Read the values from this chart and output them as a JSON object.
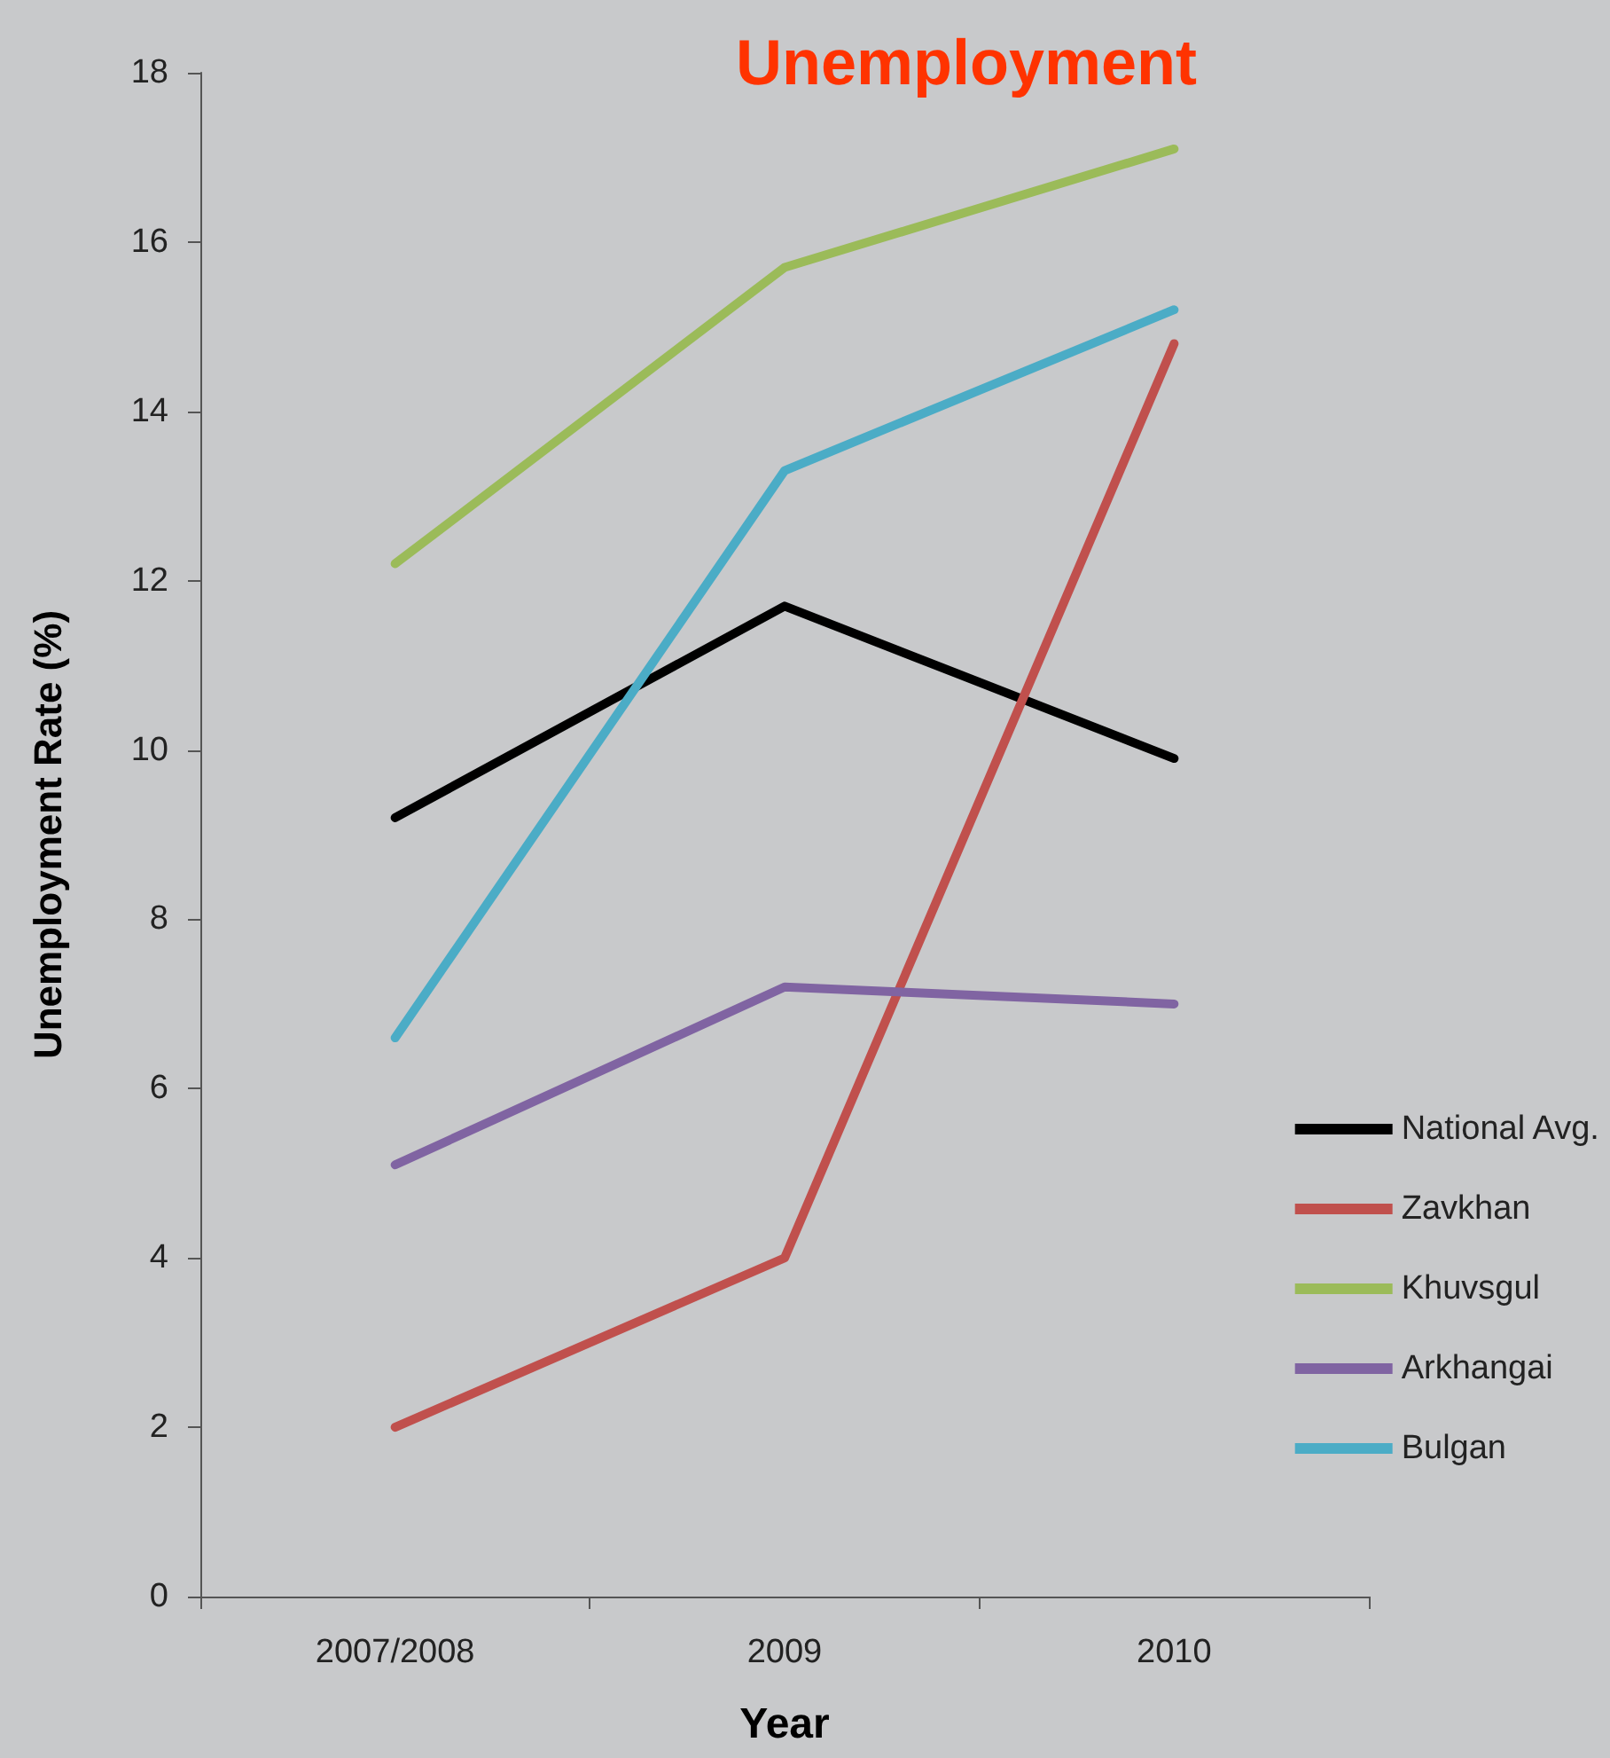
{
  "chart_data": {
    "type": "line",
    "title": "Unemployment",
    "xlabel": "Year",
    "ylabel": "Unemployment Rate (%)",
    "categories": [
      "2007/2008",
      "2009",
      "2010"
    ],
    "series": [
      {
        "name": "National Avg.",
        "color": "#000000",
        "values": [
          9.2,
          11.7,
          9.9
        ]
      },
      {
        "name": "Zavkhan",
        "color": "#c0504d",
        "values": [
          2.0,
          4.0,
          14.8
        ]
      },
      {
        "name": "Khuvsgul",
        "color": "#9bbb59",
        "values": [
          12.2,
          15.7,
          17.1
        ]
      },
      {
        "name": "Arkhangai",
        "color": "#8064a2",
        "values": [
          5.1,
          7.2,
          7.0
        ]
      },
      {
        "name": "Bulgan",
        "color": "#4bacc6",
        "values": [
          6.6,
          13.3,
          15.2
        ]
      }
    ],
    "ylim": [
      0,
      18
    ],
    "yticks": [
      0,
      2,
      4,
      6,
      8,
      10,
      12,
      14,
      16,
      18
    ],
    "grid": false,
    "legend": "right",
    "marker": "none",
    "line_style": "solid"
  }
}
